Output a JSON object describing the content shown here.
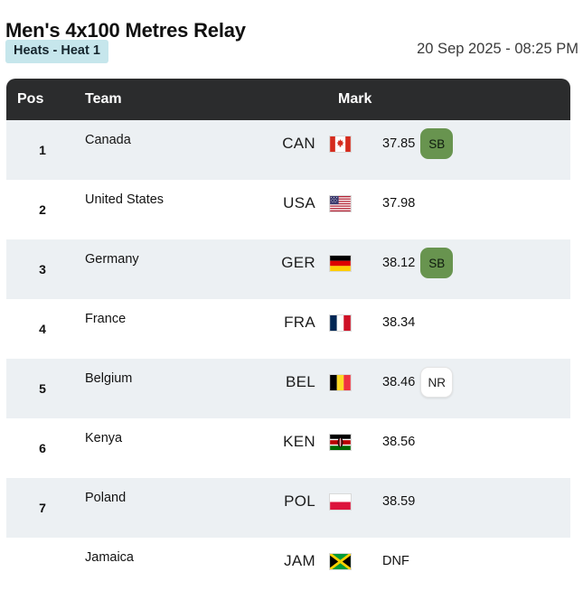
{
  "page": {
    "title": "Men's 4x100 Metres Relay",
    "phase_badge": "Heats - Heat 1",
    "datetime": "20 Sep 2025 - 08:25 PM"
  },
  "table": {
    "columns": {
      "pos": "Pos",
      "team": "Team",
      "mark": "Mark"
    },
    "rows": [
      {
        "pos": "1",
        "team": "Canada",
        "code": "CAN",
        "flag": "canada-flag",
        "mark": "37.85",
        "badge": "SB",
        "badge_style": "green"
      },
      {
        "pos": "2",
        "team": "United States",
        "code": "USA",
        "flag": "usa-flag",
        "mark": "37.98",
        "badge": "",
        "badge_style": ""
      },
      {
        "pos": "3",
        "team": "Germany",
        "code": "GER",
        "flag": "germany-flag",
        "mark": "38.12",
        "badge": "SB",
        "badge_style": "green"
      },
      {
        "pos": "4",
        "team": "France",
        "code": "FRA",
        "flag": "france-flag",
        "mark": "38.34",
        "badge": "",
        "badge_style": ""
      },
      {
        "pos": "5",
        "team": "Belgium",
        "code": "BEL",
        "flag": "belgium-flag",
        "mark": "38.46",
        "badge": "NR",
        "badge_style": "white"
      },
      {
        "pos": "6",
        "team": "Kenya",
        "code": "KEN",
        "flag": "kenya-flag",
        "mark": "38.56",
        "badge": "",
        "badge_style": ""
      },
      {
        "pos": "7",
        "team": "Poland",
        "code": "POL",
        "flag": "poland-flag",
        "mark": "38.59",
        "badge": "",
        "badge_style": ""
      },
      {
        "pos": "",
        "team": "Jamaica",
        "code": "JAM",
        "flag": "jamaica-flag",
        "mark": "DNF",
        "badge": "",
        "badge_style": ""
      }
    ]
  },
  "colors": {
    "header_bg": "#2b2c2d",
    "row_alt_bg": "#ecf0f3",
    "phase_badge_bg": "#c6e6ec",
    "sb_badge_bg": "#68944f"
  }
}
